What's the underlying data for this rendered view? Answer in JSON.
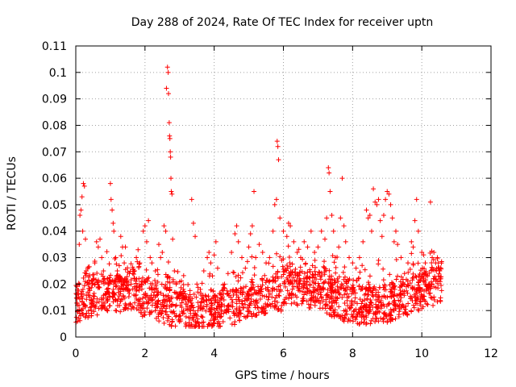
{
  "chart_data": {
    "type": "scatter",
    "title": "Day 288 of 2024, Rate Of TEC Index for receiver uptn",
    "xlabel": "GPS time / hours",
    "ylabel": "ROTI / TECUs",
    "xlim": [
      0,
      12
    ],
    "ylim": [
      0,
      0.11
    ],
    "xticks": [
      0,
      2,
      4,
      6,
      8,
      10,
      12
    ],
    "xtick_labels": [
      "0",
      "2",
      "4",
      "6",
      "8",
      "10",
      "12"
    ],
    "yticks": [
      0,
      0.01,
      0.02,
      0.03,
      0.04,
      0.05,
      0.06,
      0.07,
      0.08,
      0.09,
      0.1,
      0.11
    ],
    "ytick_labels": [
      "0",
      "0.01",
      "0.02",
      "0.03",
      "0.04",
      "0.05",
      "0.06",
      "0.07",
      "0.08",
      "0.09",
      "0.1",
      "0.11"
    ],
    "grid": true,
    "marker": "+",
    "series": [
      {
        "name": "ROTI",
        "color": "#ff0000",
        "points": [
          [
            0.05,
            0.012
          ],
          [
            0.1,
            0.035
          ],
          [
            0.12,
            0.046
          ],
          [
            0.15,
            0.048
          ],
          [
            0.18,
            0.053
          ],
          [
            0.2,
            0.04
          ],
          [
            0.22,
            0.058
          ],
          [
            0.25,
            0.057
          ],
          [
            0.28,
            0.037
          ],
          [
            0.3,
            0.025
          ],
          [
            0.35,
            0.017
          ],
          [
            0.4,
            0.015
          ],
          [
            0.45,
            0.013
          ],
          [
            0.5,
            0.022
          ],
          [
            0.55,
            0.028
          ],
          [
            0.6,
            0.036
          ],
          [
            0.65,
            0.034
          ],
          [
            0.7,
            0.037
          ],
          [
            0.75,
            0.03
          ],
          [
            0.8,
            0.025
          ],
          [
            0.85,
            0.016
          ],
          [
            0.9,
            0.018
          ],
          [
            0.95,
            0.02
          ],
          [
            1.0,
            0.058
          ],
          [
            1.02,
            0.052
          ],
          [
            1.05,
            0.048
          ],
          [
            1.08,
            0.043
          ],
          [
            1.1,
            0.04
          ],
          [
            1.15,
            0.03
          ],
          [
            1.2,
            0.025
          ],
          [
            1.3,
            0.038
          ],
          [
            1.35,
            0.034
          ],
          [
            1.4,
            0.028
          ],
          [
            1.45,
            0.022
          ],
          [
            1.5,
            0.018
          ],
          [
            1.55,
            0.024
          ],
          [
            1.6,
            0.02
          ],
          [
            1.7,
            0.025
          ],
          [
            1.75,
            0.03
          ],
          [
            1.8,
            0.033
          ],
          [
            1.85,
            0.028
          ],
          [
            1.9,
            0.02
          ],
          [
            1.95,
            0.04
          ],
          [
            2.0,
            0.042
          ],
          [
            2.05,
            0.036
          ],
          [
            2.1,
            0.044
          ],
          [
            2.15,
            0.03
          ],
          [
            2.2,
            0.028
          ],
          [
            2.3,
            0.025
          ],
          [
            2.4,
            0.035
          ],
          [
            2.45,
            0.03
          ],
          [
            2.5,
            0.032
          ],
          [
            2.55,
            0.042
          ],
          [
            2.6,
            0.04
          ],
          [
            2.62,
            0.094
          ],
          [
            2.65,
            0.102
          ],
          [
            2.67,
            0.1
          ],
          [
            2.68,
            0.092
          ],
          [
            2.7,
            0.081
          ],
          [
            2.71,
            0.076
          ],
          [
            2.72,
            0.075
          ],
          [
            2.73,
            0.07
          ],
          [
            2.74,
            0.068
          ],
          [
            2.75,
            0.06
          ],
          [
            2.76,
            0.055
          ],
          [
            2.78,
            0.054
          ],
          [
            2.8,
            0.037
          ],
          [
            2.85,
            0.025
          ],
          [
            2.9,
            0.02
          ],
          [
            3.0,
            0.016
          ],
          [
            3.1,
            0.014
          ],
          [
            3.2,
            0.015
          ],
          [
            3.3,
            0.016
          ],
          [
            3.35,
            0.052
          ],
          [
            3.4,
            0.043
          ],
          [
            3.45,
            0.038
          ],
          [
            3.5,
            0.02
          ],
          [
            3.6,
            0.018
          ],
          [
            3.7,
            0.025
          ],
          [
            3.8,
            0.03
          ],
          [
            3.85,
            0.032
          ],
          [
            3.9,
            0.028
          ],
          [
            4.0,
            0.031
          ],
          [
            4.05,
            0.036
          ],
          [
            4.1,
            0.026
          ],
          [
            4.2,
            0.016
          ],
          [
            4.3,
            0.02
          ],
          [
            4.4,
            0.024
          ],
          [
            4.5,
            0.032
          ],
          [
            4.6,
            0.039
          ],
          [
            4.65,
            0.042
          ],
          [
            4.7,
            0.036
          ],
          [
            4.8,
            0.03
          ],
          [
            4.9,
            0.026
          ],
          [
            5.0,
            0.034
          ],
          [
            5.05,
            0.039
          ],
          [
            5.1,
            0.042
          ],
          [
            5.15,
            0.055
          ],
          [
            5.2,
            0.03
          ],
          [
            5.3,
            0.035
          ],
          [
            5.4,
            0.032
          ],
          [
            5.5,
            0.028
          ],
          [
            5.6,
            0.03
          ],
          [
            5.7,
            0.04
          ],
          [
            5.75,
            0.05
          ],
          [
            5.8,
            0.052
          ],
          [
            5.82,
            0.074
          ],
          [
            5.84,
            0.072
          ],
          [
            5.86,
            0.067
          ],
          [
            5.9,
            0.045
          ],
          [
            6.0,
            0.04
          ],
          [
            6.1,
            0.038
          ],
          [
            6.15,
            0.043
          ],
          [
            6.2,
            0.042
          ],
          [
            6.3,
            0.036
          ],
          [
            6.4,
            0.032
          ],
          [
            6.5,
            0.03
          ],
          [
            6.6,
            0.036
          ],
          [
            6.7,
            0.034
          ],
          [
            6.8,
            0.04
          ],
          [
            6.9,
            0.032
          ],
          [
            7.0,
            0.034
          ],
          [
            7.1,
            0.04
          ],
          [
            7.2,
            0.037
          ],
          [
            7.25,
            0.045
          ],
          [
            7.3,
            0.064
          ],
          [
            7.32,
            0.062
          ],
          [
            7.35,
            0.055
          ],
          [
            7.4,
            0.046
          ],
          [
            7.45,
            0.04
          ],
          [
            7.5,
            0.03
          ],
          [
            7.6,
            0.034
          ],
          [
            7.65,
            0.045
          ],
          [
            7.7,
            0.06
          ],
          [
            7.75,
            0.042
          ],
          [
            7.8,
            0.036
          ],
          [
            7.9,
            0.03
          ],
          [
            8.0,
            0.028
          ],
          [
            8.1,
            0.026
          ],
          [
            8.2,
            0.03
          ],
          [
            8.3,
            0.036
          ],
          [
            8.4,
            0.048
          ],
          [
            8.45,
            0.045
          ],
          [
            8.5,
            0.046
          ],
          [
            8.55,
            0.04
          ],
          [
            8.6,
            0.056
          ],
          [
            8.65,
            0.051
          ],
          [
            8.7,
            0.05
          ],
          [
            8.75,
            0.052
          ],
          [
            8.8,
            0.044
          ],
          [
            8.85,
            0.038
          ],
          [
            8.9,
            0.046
          ],
          [
            8.95,
            0.052
          ],
          [
            9.0,
            0.055
          ],
          [
            9.05,
            0.054
          ],
          [
            9.1,
            0.05
          ],
          [
            9.15,
            0.045
          ],
          [
            9.2,
            0.036
          ],
          [
            9.25,
            0.04
          ],
          [
            9.3,
            0.035
          ],
          [
            9.4,
            0.03
          ],
          [
            9.5,
            0.024
          ],
          [
            9.6,
            0.028
          ],
          [
            9.7,
            0.036
          ],
          [
            9.75,
            0.034
          ],
          [
            9.8,
            0.044
          ],
          [
            9.85,
            0.052
          ],
          [
            9.9,
            0.04
          ],
          [
            10.0,
            0.032
          ],
          [
            10.1,
            0.028
          ],
          [
            10.2,
            0.02
          ],
          [
            10.25,
            0.051
          ],
          [
            10.3,
            0.03
          ],
          [
            10.35,
            0.032
          ],
          [
            10.4,
            0.028
          ],
          [
            10.45,
            0.03
          ],
          [
            10.5,
            0.026
          ],
          [
            10.55,
            0.022
          ]
        ]
      }
    ]
  }
}
